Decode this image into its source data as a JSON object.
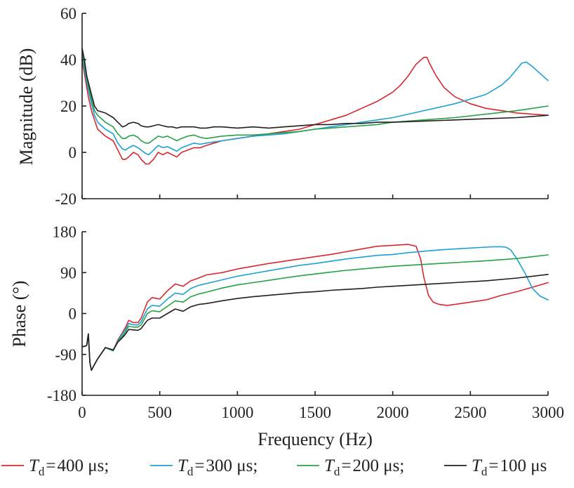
{
  "chart_data": [
    {
      "type": "line",
      "title": "",
      "xlabel": "",
      "ylabel": "Magnitude (dB)",
      "xlim": [
        0,
        3000
      ],
      "ylim": [
        -20,
        60
      ],
      "yticks": [
        "60",
        "40",
        "20",
        "0",
        "-20"
      ],
      "yvals": [
        60,
        40,
        20,
        0,
        -20
      ],
      "xtick_vals": [
        0,
        500,
        1000,
        1500,
        2000,
        2500,
        3000
      ],
      "grid": false,
      "series": [
        {
          "color": "#d7282f",
          "x": [
            0,
            20,
            40,
            60,
            80,
            100,
            150,
            200,
            230,
            260,
            280,
            300,
            330,
            360,
            380,
            410,
            430,
            460,
            490,
            520,
            550,
            580,
            610,
            640,
            680,
            720,
            760,
            800,
            850,
            900,
            1000,
            1100,
            1200,
            1300,
            1400,
            1500,
            1600,
            1700,
            1800,
            1900,
            2000,
            2050,
            2100,
            2150,
            2200,
            2220,
            2240,
            2280,
            2330,
            2400,
            2500,
            2600,
            2700,
            2800,
            2900,
            3000
          ],
          "values": [
            40,
            32,
            24,
            18,
            14,
            10,
            7,
            5,
            1,
            -3,
            -3,
            -2,
            0,
            -1,
            -3,
            -5,
            -5,
            -3,
            0,
            -1,
            0,
            -1,
            -2,
            0,
            1,
            2,
            2,
            3,
            4,
            5,
            6,
            7,
            8,
            9,
            10,
            12,
            14,
            16,
            19,
            22,
            26,
            29,
            33,
            38,
            41,
            41,
            38,
            33,
            28,
            24,
            21,
            19,
            18,
            17,
            16.5,
            16
          ]
        },
        {
          "color": "#1ea0d6",
          "x": [
            0,
            20,
            40,
            60,
            80,
            100,
            150,
            200,
            230,
            260,
            280,
            300,
            330,
            360,
            380,
            410,
            430,
            460,
            490,
            520,
            550,
            580,
            610,
            640,
            680,
            720,
            760,
            800,
            850,
            900,
            1000,
            1100,
            1200,
            1300,
            1400,
            1500,
            1600,
            1700,
            1800,
            1900,
            2000,
            2100,
            2200,
            2300,
            2400,
            2500,
            2600,
            2700,
            2750,
            2800,
            2830,
            2860,
            2900,
            2950,
            3000
          ],
          "values": [
            42,
            34,
            27,
            21,
            16,
            13,
            10,
            8,
            4,
            1.5,
            1,
            2,
            3,
            2,
            1,
            -0.5,
            -1,
            1,
            3,
            2,
            2.5,
            1.5,
            0.5,
            2,
            3,
            4,
            3.5,
            4,
            4.5,
            5,
            6,
            7,
            7.5,
            8,
            9,
            10,
            11,
            12,
            13,
            14,
            15,
            16.5,
            18,
            19.5,
            21,
            23,
            25,
            29,
            32,
            36,
            38.5,
            39,
            37,
            34,
            31
          ]
        },
        {
          "color": "#28a048",
          "x": [
            0,
            20,
            40,
            60,
            80,
            100,
            150,
            200,
            230,
            260,
            280,
            300,
            330,
            360,
            380,
            410,
            430,
            460,
            490,
            520,
            550,
            580,
            610,
            640,
            680,
            720,
            760,
            800,
            850,
            900,
            1000,
            1100,
            1200,
            1300,
            1400,
            1500,
            1600,
            1700,
            1800,
            1900,
            2000,
            2200,
            2400,
            2600,
            2800,
            2900,
            3000
          ],
          "values": [
            44,
            36,
            29,
            23,
            18,
            16,
            13,
            11,
            8,
            6,
            6,
            7,
            7.5,
            6.5,
            5,
            4,
            4,
            5.5,
            7,
            6.5,
            7,
            6,
            5,
            6,
            7,
            7.5,
            6.5,
            6,
            6.5,
            7,
            7.5,
            7.5,
            8,
            8.5,
            9,
            10,
            10.5,
            11,
            11.5,
            12,
            13,
            14,
            15,
            16.5,
            18,
            19,
            20
          ]
        },
        {
          "color": "#231f20",
          "x": [
            0,
            15,
            30,
            45,
            60,
            80,
            100,
            150,
            200,
            230,
            260,
            280,
            300,
            330,
            360,
            380,
            410,
            430,
            460,
            490,
            520,
            550,
            580,
            610,
            640,
            680,
            720,
            760,
            800,
            850,
            900,
            1000,
            1100,
            1200,
            1300,
            1400,
            1500,
            1600,
            1700,
            1800,
            1900,
            2000,
            2200,
            2400,
            2600,
            2800,
            3000
          ],
          "values": [
            45,
            40,
            33,
            29,
            25,
            20,
            18,
            17,
            15,
            13,
            11,
            11.5,
            12.5,
            13,
            12.5,
            11.5,
            11,
            11,
            11.5,
            12,
            11.5,
            11,
            11,
            10.5,
            11,
            11,
            11,
            10.5,
            10.5,
            11,
            11,
            10.5,
            11,
            10.5,
            11,
            11.5,
            12,
            12,
            12.5,
            12.5,
            13,
            13,
            13.5,
            14,
            14.5,
            15,
            16
          ]
        }
      ]
    },
    {
      "type": "line",
      "title": "",
      "xlabel": "Frequency (Hz)",
      "ylabel": "Phase (°)",
      "xlim": [
        0,
        3000
      ],
      "ylim": [
        -180,
        180
      ],
      "yticks": [
        "180",
        "90",
        "0",
        "-90",
        "-180"
      ],
      "yvals": [
        180,
        90,
        0,
        -90,
        -180
      ],
      "xticks": [
        "0",
        "500",
        "1000",
        "1500",
        "2000",
        "2500",
        "3000"
      ],
      "xtick_vals": [
        0,
        500,
        1000,
        1500,
        2000,
        2500,
        3000
      ],
      "grid": false,
      "series": [
        {
          "color": "#d7282f",
          "x": [
            0,
            20,
            30,
            40,
            50,
            60,
            80,
            100,
            150,
            200,
            230,
            260,
            280,
            300,
            330,
            360,
            380,
            420,
            450,
            500,
            550,
            600,
            650,
            700,
            750,
            800,
            900,
            1000,
            1100,
            1200,
            1300,
            1400,
            1500,
            1600,
            1700,
            1800,
            1900,
            2000,
            2100,
            2150,
            2180,
            2200,
            2230,
            2260,
            2300,
            2350,
            2400,
            2500,
            2600,
            2700,
            2800,
            2900,
            3000
          ],
          "values": [
            -73,
            -72,
            -70,
            -45,
            -108,
            -125,
            -112,
            -100,
            -75,
            -82,
            -58,
            -42,
            -30,
            -15,
            -20,
            -20,
            -10,
            25,
            35,
            32,
            50,
            65,
            60,
            72,
            78,
            85,
            90,
            98,
            104,
            110,
            115,
            120,
            125,
            130,
            136,
            142,
            148,
            150,
            152,
            148,
            120,
            80,
            40,
            25,
            20,
            18,
            20,
            25,
            30,
            40,
            48,
            58,
            68
          ]
        },
        {
          "color": "#1ea0d6",
          "x": [
            0,
            20,
            30,
            40,
            50,
            60,
            80,
            100,
            150,
            200,
            230,
            260,
            280,
            300,
            330,
            360,
            380,
            420,
            450,
            500,
            550,
            600,
            650,
            700,
            750,
            800,
            900,
            1000,
            1100,
            1200,
            1300,
            1400,
            1500,
            1600,
            1700,
            1800,
            1900,
            2000,
            2100,
            2200,
            2300,
            2400,
            2500,
            2600,
            2650,
            2700,
            2730,
            2760,
            2800,
            2850,
            2900,
            2950,
            3000
          ],
          "values": [
            -73,
            -72,
            -70,
            -45,
            -108,
            -125,
            -112,
            -100,
            -75,
            -82,
            -60,
            -45,
            -35,
            -22,
            -25,
            -25,
            -18,
            10,
            18,
            16,
            32,
            45,
            42,
            55,
            62,
            66,
            74,
            82,
            88,
            94,
            100,
            106,
            110,
            115,
            120,
            124,
            128,
            130,
            134,
            137,
            140,
            142,
            144,
            146,
            147,
            147,
            146,
            140,
            120,
            90,
            55,
            38,
            30
          ]
        },
        {
          "color": "#28a048",
          "x": [
            0,
            20,
            30,
            40,
            50,
            60,
            80,
            100,
            150,
            200,
            230,
            260,
            280,
            300,
            330,
            360,
            380,
            420,
            450,
            500,
            550,
            600,
            650,
            700,
            750,
            800,
            900,
            1000,
            1100,
            1200,
            1300,
            1400,
            1500,
            1600,
            1700,
            1800,
            1900,
            2000,
            2200,
            2400,
            2600,
            2800,
            2900,
            3000
          ],
          "values": [
            -73,
            -72,
            -70,
            -45,
            -108,
            -125,
            -112,
            -100,
            -75,
            -82,
            -62,
            -50,
            -40,
            -28,
            -30,
            -30,
            -25,
            0,
            6,
            4,
            16,
            28,
            25,
            37,
            43,
            47,
            56,
            63,
            68,
            73,
            78,
            83,
            87,
            91,
            95,
            98,
            101,
            104,
            108,
            112,
            116,
            121,
            125,
            129
          ]
        },
        {
          "color": "#231f20",
          "x": [
            0,
            20,
            30,
            40,
            50,
            60,
            80,
            100,
            150,
            200,
            230,
            260,
            280,
            300,
            330,
            360,
            380,
            420,
            450,
            500,
            550,
            600,
            650,
            700,
            750,
            800,
            900,
            1000,
            1100,
            1200,
            1300,
            1400,
            1500,
            1600,
            1700,
            1800,
            1900,
            2000,
            2200,
            2400,
            2600,
            2800,
            2900,
            3000
          ],
          "values": [
            -73,
            -72,
            -70,
            -45,
            -108,
            -125,
            -112,
            -100,
            -75,
            -80,
            -63,
            -53,
            -45,
            -35,
            -36,
            -37,
            -33,
            -15,
            -10,
            -10,
            0,
            10,
            5,
            15,
            20,
            22,
            28,
            33,
            37,
            40,
            43,
            46,
            48,
            51,
            53,
            55,
            58,
            60,
            64,
            68,
            72,
            78,
            82,
            86
          ]
        }
      ]
    }
  ],
  "legend": [
    {
      "sym": "T",
      "sub": "d",
      "eq": "=",
      "val": "400 μs;",
      "color": "#d7282f"
    },
    {
      "sym": "T",
      "sub": "d",
      "eq": "=",
      "val": "300 μs;",
      "color": "#1ea0d6"
    },
    {
      "sym": "T",
      "sub": "d",
      "eq": "=",
      "val": "200 μs;",
      "color": "#28a048"
    },
    {
      "sym": "T",
      "sub": "d",
      "eq": "=",
      "val": "100 μs",
      "color": "#231f20"
    }
  ]
}
